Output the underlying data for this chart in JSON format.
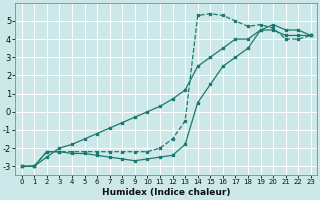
{
  "xlabel": "Humidex (Indice chaleur)",
  "background_color": "#cde8e8",
  "grid_color": "#ffffff",
  "line_color": "#1a7a6e",
  "xlim": [
    -0.5,
    23.5
  ],
  "ylim": [
    -3.5,
    6.0
  ],
  "xticks": [
    0,
    1,
    2,
    3,
    4,
    5,
    6,
    7,
    8,
    9,
    10,
    11,
    12,
    13,
    14,
    15,
    16,
    17,
    18,
    19,
    20,
    21,
    22,
    23
  ],
  "yticks": [
    -3,
    -2,
    -1,
    0,
    1,
    2,
    3,
    4,
    5
  ],
  "line1_x": [
    0,
    1,
    2,
    3,
    4,
    5,
    6,
    7,
    8,
    9,
    10,
    11,
    12,
    13,
    14,
    15,
    16,
    17,
    18,
    19,
    20,
    21,
    22,
    23
  ],
  "line1_y": [
    -3.0,
    -3.0,
    -2.2,
    -2.2,
    -2.2,
    -2.2,
    -2.2,
    -2.2,
    -2.2,
    -2.2,
    -2.2,
    -2.0,
    -1.5,
    -0.5,
    5.3,
    5.4,
    5.3,
    5.0,
    4.7,
    4.8,
    4.6,
    4.0,
    4.0,
    4.2
  ],
  "line2_x": [
    0,
    1,
    2,
    3,
    4,
    5,
    6,
    7,
    8,
    9,
    10,
    11,
    12,
    13,
    14,
    15,
    16,
    17,
    18,
    19,
    20,
    21,
    22,
    23
  ],
  "line2_y": [
    -3.0,
    -3.0,
    -2.5,
    -2.0,
    -1.8,
    -1.5,
    -1.2,
    -0.9,
    -0.6,
    -0.3,
    0.0,
    0.3,
    0.7,
    1.2,
    2.5,
    3.0,
    3.5,
    4.0,
    4.0,
    4.5,
    4.5,
    4.2,
    4.2,
    4.2
  ],
  "line3_x": [
    0,
    1,
    2,
    3,
    4,
    5,
    6,
    7,
    8,
    9,
    10,
    11,
    12,
    13,
    14,
    15,
    16,
    17,
    18,
    19,
    20,
    21,
    22,
    23
  ],
  "line3_y": [
    -3.0,
    -3.0,
    -2.2,
    -2.2,
    -2.3,
    -2.3,
    -2.4,
    -2.5,
    -2.6,
    -2.7,
    -2.6,
    -2.5,
    -2.4,
    -1.8,
    0.5,
    1.5,
    2.5,
    3.0,
    3.5,
    4.5,
    4.8,
    4.5,
    4.5,
    4.2
  ]
}
